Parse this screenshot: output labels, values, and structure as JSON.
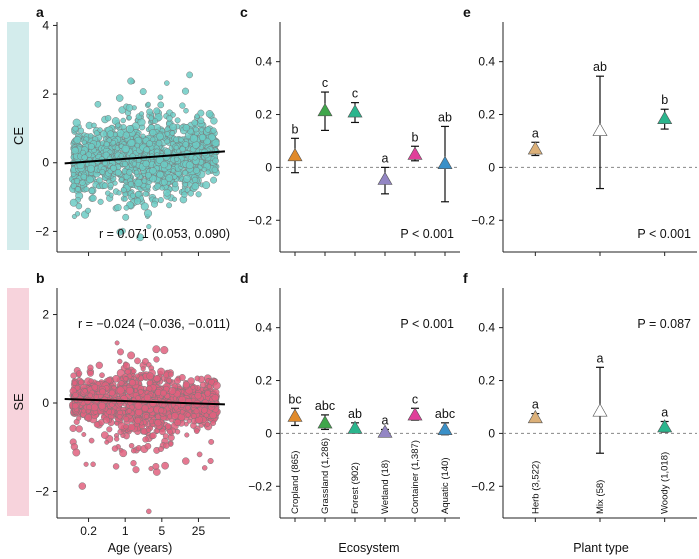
{
  "colors": {
    "ce_band": "#d3ecec",
    "se_band": "#f7d3dc",
    "ce_points": "#6ccbc4",
    "se_points": "#e0607e",
    "regression": "#000000"
  },
  "rows": [
    {
      "label": "CE"
    },
    {
      "label": "SE"
    }
  ],
  "panel_letters": [
    "a",
    "b",
    "c",
    "d",
    "e",
    "f"
  ],
  "x_axis_titles": {
    "age": "Age (years)",
    "ecosystem": "Ecosystem",
    "plant_type": "Plant type"
  },
  "chart_data": [
    {
      "id": "a",
      "type": "scatter",
      "row": "CE",
      "xscale": "log",
      "xticks": [
        {
          "v": 0.2,
          "label": "0.2"
        },
        {
          "v": 1,
          "label": "1"
        },
        {
          "v": 5,
          "label": "5"
        },
        {
          "v": 25,
          "label": "25"
        }
      ],
      "xlim": [
        0.05,
        100
      ],
      "ylim": [
        -2.6,
        4.1
      ],
      "yticks": [
        -2,
        0,
        2,
        4
      ],
      "regression": {
        "x0": 0.07,
        "y0": -0.02,
        "x1": 80,
        "y1": 0.33
      },
      "stat": "r = 0.071 (0.053, 0.090)",
      "point_color": "#6ccbc4"
    },
    {
      "id": "b",
      "type": "scatter",
      "row": "SE",
      "xscale": "log",
      "xlabel": "Age (years)",
      "xticks": [
        {
          "v": 0.2,
          "label": "0.2"
        },
        {
          "v": 1,
          "label": "1"
        },
        {
          "v": 5,
          "label": "5"
        },
        {
          "v": 25,
          "label": "25"
        }
      ],
      "xlim": [
        0.05,
        100
      ],
      "ylim": [
        -2.6,
        2.6
      ],
      "yticks": [
        -2,
        0,
        2
      ],
      "regression": {
        "x0": 0.07,
        "y0": 0.09,
        "x1": 80,
        "y1": -0.03
      },
      "stat": "r = −0.024 (−0.036, −0.011)",
      "point_color": "#e0607e"
    },
    {
      "id": "c",
      "type": "errorbar",
      "row": "CE",
      "ylim": [
        -0.32,
        0.55
      ],
      "yticks": [
        {
          "v": -0.2,
          "label": "−0.2"
        },
        {
          "v": 0,
          "label": "0"
        },
        {
          "v": 0.2,
          "label": "0.2"
        },
        {
          "v": 0.4,
          "label": "0.4"
        }
      ],
      "stat": "P < 0.001",
      "stat_position": "bottom-right",
      "points": [
        {
          "category": "Cropland",
          "value": 0.045,
          "lo": -0.02,
          "hi": 0.11,
          "letter": "b",
          "color": "#e08a2a"
        },
        {
          "category": "Grassland",
          "value": 0.215,
          "lo": 0.14,
          "hi": 0.285,
          "letter": "c",
          "color": "#3fa64a"
        },
        {
          "category": "Forest",
          "value": 0.21,
          "lo": 0.17,
          "hi": 0.245,
          "letter": "c",
          "color": "#2bb58d"
        },
        {
          "category": "Wetland",
          "value": -0.045,
          "lo": -0.1,
          "hi": 0.0,
          "letter": "a",
          "color": "#9386c4"
        },
        {
          "category": "Container",
          "value": 0.05,
          "lo": 0.025,
          "hi": 0.08,
          "letter": "b",
          "color": "#e0409a"
        },
        {
          "category": "Aquatic",
          "value": 0.015,
          "lo": -0.13,
          "hi": 0.155,
          "letter": "ab",
          "color": "#3a90c8"
        }
      ]
    },
    {
      "id": "d",
      "type": "errorbar",
      "row": "SE",
      "xlabel": "Ecosystem",
      "ylim": [
        -0.32,
        0.55
      ],
      "yticks": [
        {
          "v": -0.2,
          "label": "−0.2"
        },
        {
          "v": 0,
          "label": "0"
        },
        {
          "v": 0.2,
          "label": "0.2"
        },
        {
          "v": 0.4,
          "label": "0.4"
        }
      ],
      "stat": "P < 0.001",
      "stat_position": "top-right",
      "points": [
        {
          "category": "Cropland (865)",
          "value": 0.065,
          "lo": 0.03,
          "hi": 0.095,
          "letter": "bc",
          "color": "#e08a2a"
        },
        {
          "category": "Grassland (1,286)",
          "value": 0.04,
          "lo": 0.015,
          "hi": 0.07,
          "letter": "abc",
          "color": "#3fa64a"
        },
        {
          "category": "Forest (902)",
          "value": 0.02,
          "lo": 0.005,
          "hi": 0.04,
          "letter": "ab",
          "color": "#2bb58d"
        },
        {
          "category": "Wetland (18)",
          "value": 0.005,
          "lo": -0.005,
          "hi": 0.015,
          "letter": "a",
          "color": "#9386c4"
        },
        {
          "category": "Container (1,387)",
          "value": 0.07,
          "lo": 0.05,
          "hi": 0.095,
          "letter": "c",
          "color": "#e0409a"
        },
        {
          "category": "Aquatic (140)",
          "value": 0.015,
          "lo": -0.005,
          "hi": 0.04,
          "letter": "abc",
          "color": "#3a90c8"
        }
      ]
    },
    {
      "id": "e",
      "type": "errorbar",
      "row": "CE",
      "ylim": [
        -0.32,
        0.55
      ],
      "yticks": [
        {
          "v": -0.2,
          "label": "−0.2"
        },
        {
          "v": 0,
          "label": "0"
        },
        {
          "v": 0.2,
          "label": "0.2"
        },
        {
          "v": 0.4,
          "label": "0.4"
        }
      ],
      "stat": "P < 0.001",
      "stat_position": "bottom-right",
      "points": [
        {
          "category": "Herb",
          "value": 0.07,
          "lo": 0.045,
          "hi": 0.095,
          "letter": "a",
          "color": "#dcb078"
        },
        {
          "category": "Mix",
          "value": 0.14,
          "lo": -0.08,
          "hi": 0.345,
          "letter": "ab",
          "color": "#ffffff"
        },
        {
          "category": "Woody",
          "value": 0.185,
          "lo": 0.145,
          "hi": 0.22,
          "letter": "b",
          "color": "#2bb58d"
        }
      ]
    },
    {
      "id": "f",
      "type": "errorbar",
      "row": "SE",
      "xlabel": "Plant type",
      "ylim": [
        -0.32,
        0.55
      ],
      "yticks": [
        {
          "v": -0.2,
          "label": "−0.2"
        },
        {
          "v": 0,
          "label": "0"
        },
        {
          "v": 0.2,
          "label": "0.2"
        },
        {
          "v": 0.4,
          "label": "0.4"
        }
      ],
      "stat": "P = 0.087",
      "stat_position": "top-right",
      "points": [
        {
          "category": "Herb (3,522)",
          "value": 0.06,
          "lo": 0.045,
          "hi": 0.075,
          "letter": "a",
          "color": "#dcb078"
        },
        {
          "category": "Mix (58)",
          "value": 0.085,
          "lo": -0.075,
          "hi": 0.25,
          "letter": "a",
          "color": "#ffffff"
        },
        {
          "category": "Woody (1,018)",
          "value": 0.025,
          "lo": 0.005,
          "hi": 0.045,
          "letter": "a",
          "color": "#2bb58d"
        }
      ]
    }
  ]
}
